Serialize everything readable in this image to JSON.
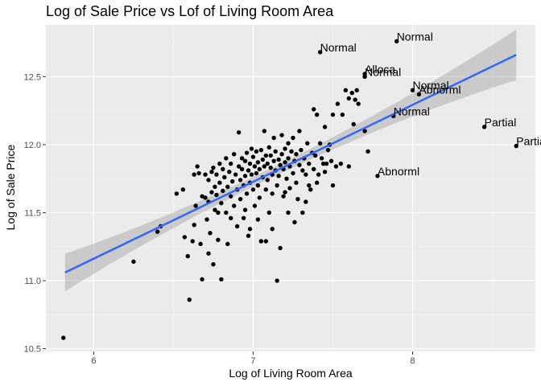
{
  "chart_data": {
    "type": "scatter",
    "title": "Log of Sale Price vs Lof of Living Room Area",
    "xlabel": "Log of Living Room Area",
    "ylabel": "Log of Sale Price",
    "xlim": [
      5.7,
      8.77
    ],
    "ylim": [
      10.48,
      12.88
    ],
    "x_ticks": [
      6,
      7,
      8
    ],
    "y_ticks": [
      10.5,
      11.0,
      11.5,
      12.0,
      12.5
    ],
    "x_tick_labels": [
      "6",
      "7",
      "8"
    ],
    "y_tick_labels": [
      "10.5",
      "11.0",
      "11.5",
      "12.0",
      "12.5"
    ],
    "grid": true,
    "regression_line": {
      "x": [
        5.82,
        8.65
      ],
      "y": [
        11.06,
        12.66
      ],
      "color": "#3366FF",
      "confidence_band": true
    },
    "points": [
      [
        5.81,
        10.58
      ],
      [
        6.25,
        11.14
      ],
      [
        6.4,
        11.36
      ],
      [
        6.42,
        11.4
      ],
      [
        6.52,
        11.64
      ],
      [
        6.56,
        11.67
      ],
      [
        6.57,
        11.32
      ],
      [
        6.59,
        11.18
      ],
      [
        6.6,
        10.86
      ],
      [
        6.62,
        11.29
      ],
      [
        6.63,
        11.78
      ],
      [
        6.63,
        11.41
      ],
      [
        6.64,
        11.55
      ],
      [
        6.65,
        11.84
      ],
      [
        6.66,
        11.79
      ],
      [
        6.67,
        11.27
      ],
      [
        6.68,
        11.62
      ],
      [
        6.68,
        11.01
      ],
      [
        6.7,
        11.78
      ],
      [
        6.7,
        11.61
      ],
      [
        6.71,
        11.45
      ],
      [
        6.72,
        11.74
      ],
      [
        6.72,
        11.58
      ],
      [
        6.73,
        11.35
      ],
      [
        6.74,
        11.8
      ],
      [
        6.74,
        11.65
      ],
      [
        6.75,
        11.12
      ],
      [
        6.75,
        11.83
      ],
      [
        6.76,
        11.69
      ],
      [
        6.76,
        11.52
      ],
      [
        6.77,
        11.78
      ],
      [
        6.77,
        11.63
      ],
      [
        6.78,
        11.3
      ],
      [
        6.79,
        11.86
      ],
      [
        6.79,
        11.72
      ],
      [
        6.8,
        11.57
      ],
      [
        6.8,
        11.01
      ],
      [
        6.81,
        11.82
      ],
      [
        6.81,
        11.66
      ],
      [
        6.82,
        11.76
      ],
      [
        6.83,
        11.5
      ],
      [
        6.83,
        11.9
      ],
      [
        6.84,
        11.69
      ],
      [
        6.84,
        11.27
      ],
      [
        6.85,
        11.8
      ],
      [
        6.86,
        11.62
      ],
      [
        6.86,
        11.86
      ],
      [
        6.87,
        11.73
      ],
      [
        6.88,
        11.93
      ],
      [
        6.88,
        11.55
      ],
      [
        6.89,
        11.78
      ],
      [
        6.9,
        11.67
      ],
      [
        6.9,
        11.4
      ],
      [
        6.91,
        11.84
      ],
      [
        6.91,
        12.09
      ],
      [
        6.92,
        11.74
      ],
      [
        6.92,
        11.6
      ],
      [
        6.93,
        11.9
      ],
      [
        6.93,
        11.82
      ],
      [
        6.94,
        11.7
      ],
      [
        6.94,
        11.46
      ],
      [
        6.95,
        11.88
      ],
      [
        6.95,
        11.77
      ],
      [
        6.96,
        11.94
      ],
      [
        6.96,
        11.64
      ],
      [
        6.97,
        11.81
      ],
      [
        6.97,
        11.33
      ],
      [
        6.98,
        11.86
      ],
      [
        6.98,
        11.72
      ],
      [
        6.99,
        11.97
      ],
      [
        6.99,
        11.78
      ],
      [
        7.0,
        11.67
      ],
      [
        7.0,
        11.91
      ],
      [
        7.01,
        11.84
      ],
      [
        7.01,
        11.55
      ],
      [
        7.02,
        11.79
      ],
      [
        7.02,
        11.95
      ],
      [
        7.03,
        11.87
      ],
      [
        7.03,
        11.7
      ],
      [
        7.04,
        11.82
      ],
      [
        7.04,
        11.61
      ],
      [
        7.05,
        11.96
      ],
      [
        7.05,
        11.29
      ],
      [
        7.06,
        11.89
      ],
      [
        7.06,
        11.76
      ],
      [
        7.07,
        11.84
      ],
      [
        7.07,
        12.1
      ],
      [
        7.08,
        11.92
      ],
      [
        7.08,
        11.67
      ],
      [
        7.09,
        11.86
      ],
      [
        7.09,
        11.74
      ],
      [
        7.1,
        11.98
      ],
      [
        7.1,
        11.5
      ],
      [
        7.11,
        11.83
      ],
      [
        7.11,
        11.92
      ],
      [
        7.12,
        11.78
      ],
      [
        7.12,
        11.64
      ],
      [
        7.13,
        11.88
      ],
      [
        7.13,
        12.05
      ],
      [
        7.14,
        11.81
      ],
      [
        7.14,
        11.95
      ],
      [
        7.15,
        11.7
      ],
      [
        7.15,
        11.0
      ],
      [
        7.16,
        11.89
      ],
      [
        7.16,
        11.77
      ],
      [
        7.17,
        11.85
      ],
      [
        7.17,
        11.24
      ],
      [
        7.18,
        12.07
      ],
      [
        7.18,
        11.93
      ],
      [
        7.19,
        11.82
      ],
      [
        7.19,
        11.62
      ],
      [
        7.2,
        11.97
      ],
      [
        7.2,
        11.87
      ],
      [
        7.21,
        11.75
      ],
      [
        7.22,
        12.01
      ],
      [
        7.22,
        11.9
      ],
      [
        7.23,
        11.68
      ],
      [
        7.23,
        11.84
      ],
      [
        7.24,
        11.95
      ],
      [
        7.25,
        11.79
      ],
      [
        7.25,
        12.05
      ],
      [
        7.26,
        11.88
      ],
      [
        7.27,
        11.72
      ],
      [
        7.27,
        11.93
      ],
      [
        7.28,
        11.6
      ],
      [
        7.29,
        11.85
      ],
      [
        7.29,
        12.1
      ],
      [
        7.3,
        11.96
      ],
      [
        7.31,
        11.81
      ],
      [
        7.31,
        11.5
      ],
      [
        7.32,
        11.9
      ],
      [
        7.33,
        11.78
      ],
      [
        7.34,
        12.01
      ],
      [
        7.35,
        11.86
      ],
      [
        7.36,
        11.67
      ],
      [
        7.37,
        11.94
      ],
      [
        7.38,
        12.26
      ],
      [
        7.38,
        11.82
      ],
      [
        7.39,
        11.92
      ],
      [
        7.4,
        12.22
      ],
      [
        7.41,
        11.78
      ],
      [
        7.42,
        12.01
      ],
      [
        7.43,
        11.9
      ],
      [
        7.44,
        11.86
      ],
      [
        7.45,
        12.13
      ],
      [
        7.46,
        11.86
      ],
      [
        7.47,
        11.96
      ],
      [
        7.48,
        12.0
      ],
      [
        7.49,
        11.88
      ],
      [
        7.5,
        12.22
      ],
      [
        7.52,
        11.84
      ],
      [
        7.53,
        12.3
      ],
      [
        7.55,
        11.86
      ],
      [
        7.56,
        12.22
      ],
      [
        7.58,
        12.4
      ],
      [
        7.6,
        12.34
      ],
      [
        7.62,
        12.38
      ],
      [
        7.63,
        12.15
      ],
      [
        7.64,
        12.33
      ],
      [
        7.65,
        12.4
      ],
      [
        7.66,
        12.3
      ],
      [
        7.7,
        12.1
      ],
      [
        7.72,
        11.95
      ],
      [
        7.7,
        12.52
      ],
      [
        7.7,
        12.5
      ],
      [
        7.42,
        12.68
      ],
      [
        7.9,
        12.76
      ],
      [
        7.88,
        12.21
      ],
      [
        8.0,
        12.4
      ],
      [
        8.04,
        12.37
      ],
      [
        7.78,
        11.77
      ],
      [
        8.45,
        12.13
      ],
      [
        8.65,
        11.99
      ],
      [
        7.6,
        11.84
      ],
      [
        7.4,
        11.72
      ],
      [
        7.33,
        11.58
      ],
      [
        7.26,
        11.43
      ],
      [
        7.22,
        11.5
      ],
      [
        7.03,
        11.45
      ],
      [
        6.95,
        11.52
      ],
      [
        7.12,
        11.38
      ],
      [
        7.08,
        11.29
      ],
      [
        6.78,
        11.5
      ],
      [
        6.86,
        11.46
      ],
      [
        6.72,
        11.2
      ],
      [
        6.98,
        11.38
      ],
      [
        7.2,
        11.65
      ],
      [
        7.35,
        11.7
      ],
      [
        7.45,
        11.8
      ],
      [
        7.5,
        11.7
      ]
    ],
    "labeled_points": [
      {
        "x": 7.42,
        "y": 12.68,
        "label": "Normal"
      },
      {
        "x": 7.9,
        "y": 12.76,
        "label": "Normal"
      },
      {
        "x": 7.7,
        "y": 12.52,
        "label": "Alloca"
      },
      {
        "x": 7.7,
        "y": 12.5,
        "label": "Normal"
      },
      {
        "x": 8.0,
        "y": 12.4,
        "label": "Normal"
      },
      {
        "x": 8.04,
        "y": 12.37,
        "label": "Abnorml"
      },
      {
        "x": 7.88,
        "y": 12.21,
        "label": "Normal"
      },
      {
        "x": 8.45,
        "y": 12.13,
        "label": "Partial"
      },
      {
        "x": 8.65,
        "y": 11.99,
        "label": "Partial"
      },
      {
        "x": 7.78,
        "y": 11.77,
        "label": "Abnorml"
      }
    ],
    "colors": {
      "panel": "#EBEBEB",
      "grid_major": "#FFFFFF",
      "point": "#000000",
      "band": "#999999"
    }
  }
}
